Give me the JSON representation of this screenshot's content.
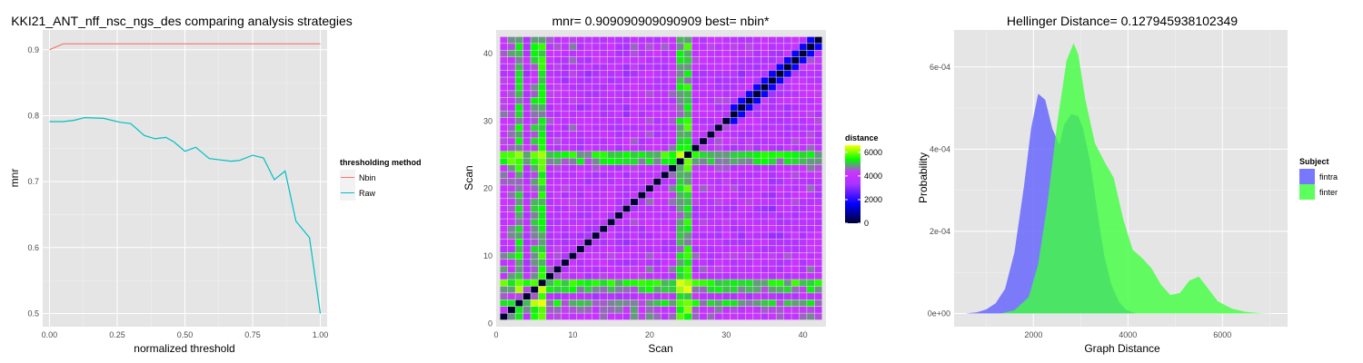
{
  "chart_data": [
    {
      "type": "line",
      "title": "KKI21_ANT_nff_nsc_ngs_des comparing analysis strategies",
      "xlabel": "normalized threshold",
      "ylabel": "mnr",
      "xlim": [
        -0.025,
        1.025
      ],
      "ylim": [
        0.48,
        0.93
      ],
      "xticks": [
        0.0,
        0.25,
        0.5,
        0.75,
        1.0
      ],
      "xtick_labels": [
        "0.00",
        "0.25",
        "0.50",
        "0.75",
        "1.00"
      ],
      "yticks": [
        0.5,
        0.6,
        0.7,
        0.8,
        0.9
      ],
      "ytick_labels": [
        "0.5",
        "0.6",
        "0.7",
        "0.8",
        "0.9"
      ],
      "grid": true,
      "legend": {
        "title": "thresholding method",
        "position": "right"
      },
      "series": [
        {
          "name": "Nbin",
          "color": "#f8766d",
          "x": [
            0.0,
            0.05,
            0.1,
            0.2,
            0.3,
            0.4,
            0.5,
            0.6,
            0.7,
            0.8,
            0.9,
            1.0
          ],
          "y": [
            0.9,
            0.909,
            0.909,
            0.909,
            0.909,
            0.909,
            0.909,
            0.909,
            0.909,
            0.909,
            0.909,
            0.909
          ]
        },
        {
          "name": "Raw",
          "color": "#00bfc4",
          "x": [
            0.0,
            0.05,
            0.09,
            0.13,
            0.2,
            0.26,
            0.3,
            0.35,
            0.39,
            0.43,
            0.46,
            0.5,
            0.54,
            0.59,
            0.63,
            0.67,
            0.7,
            0.75,
            0.79,
            0.83,
            0.87,
            0.91,
            0.96,
            1.0
          ],
          "y": [
            0.791,
            0.791,
            0.793,
            0.797,
            0.796,
            0.79,
            0.788,
            0.77,
            0.765,
            0.767,
            0.76,
            0.746,
            0.752,
            0.735,
            0.733,
            0.731,
            0.732,
            0.74,
            0.736,
            0.703,
            0.716,
            0.64,
            0.615,
            0.5
          ]
        }
      ]
    },
    {
      "type": "heatmap",
      "title": "mnr= 0.909090909090909 best= nbin*",
      "xlabel": "Scan",
      "ylabel": "Scan",
      "n": 42,
      "xlim": [
        0,
        43
      ],
      "ylim": [
        -0.5,
        43.5
      ],
      "xticks": [
        0,
        10,
        20,
        30,
        40
      ],
      "yticks": [
        0,
        10,
        20,
        30,
        40
      ],
      "legend": {
        "title": "distance",
        "position": "right",
        "ticks": [
          0,
          2000,
          4000,
          6000
        ],
        "colors": [
          "#000033",
          "#0000ff",
          "#aa33ff",
          "#cc33ff",
          "#00ff00",
          "#ffff00"
        ]
      },
      "col_base": [
        4200,
        4400,
        5500,
        3400,
        5200,
        6000,
        3700,
        3800,
        3400,
        3900,
        3300,
        3300,
        3400,
        3500,
        3600,
        3300,
        3200,
        3700,
        3400,
        3900,
        3500,
        3600,
        3900,
        5500,
        6000,
        3600,
        3700,
        3400,
        3600,
        3700,
        3400,
        3300,
        3600,
        3500,
        3400,
        3200,
        3200,
        3400,
        3600,
        3600,
        3800,
        3600
      ]
    },
    {
      "type": "area",
      "title": "Hellinger Distance= 0.127945938102349",
      "xlabel": "Graph Distance",
      "ylabel": "Probability",
      "xlim": [
        320,
        7380
      ],
      "ylim": [
        -3.2e-05,
        0.00069
      ],
      "xticks": [
        2000,
        4000,
        6000
      ],
      "yticks": [
        0,
        0.0002,
        0.0004,
        0.0006
      ],
      "ytick_labels": [
        "0e+00",
        "2e-04",
        "4e-04",
        "6e-04"
      ],
      "grid": true,
      "legend": {
        "title": "Subject",
        "position": "right"
      },
      "series": [
        {
          "name": "fintra",
          "color": "#6060ff",
          "x": [
            550,
            800,
            1000,
            1200,
            1400,
            1600,
            1800,
            1950,
            2100,
            2250,
            2400,
            2550,
            2650,
            2800,
            2950,
            3050,
            3200,
            3350,
            3500,
            3650,
            3800,
            3950,
            4100,
            4200
          ],
          "y": [
            0,
            3e-06,
            1e-05,
            2.5e-05,
            6e-05,
            0.00015,
            0.00031,
            0.00045,
            0.000535,
            0.00052,
            0.00045,
            0.00041,
            0.00046,
            0.000485,
            0.00048,
            0.00045,
            0.00037,
            0.00025,
            0.00014,
            7e-05,
            3e-05,
            1e-05,
            3e-06,
            0
          ]
        },
        {
          "name": "finter",
          "color": "#40ff40",
          "x": [
            1300,
            1600,
            1900,
            2100,
            2300,
            2500,
            2700,
            2850,
            2950,
            3100,
            3300,
            3500,
            3700,
            3900,
            4100,
            4300,
            4500,
            4700,
            4900,
            5100,
            5300,
            5500,
            5700,
            5900,
            6200,
            6500,
            6800,
            7100
          ],
          "y": [
            0,
            8e-06,
            4e-05,
            0.00012,
            0.00027,
            0.00046,
            0.000615,
            0.000658,
            0.00063,
            0.00052,
            0.000415,
            0.00037,
            0.00033,
            0.00023,
            0.000155,
            0.000135,
            0.00011,
            7e-05,
            4.5e-05,
            5e-05,
            8e-05,
            9e-05,
            6e-05,
            3e-05,
            1.2e-05,
            4e-06,
            1e-06,
            0
          ]
        }
      ]
    }
  ]
}
